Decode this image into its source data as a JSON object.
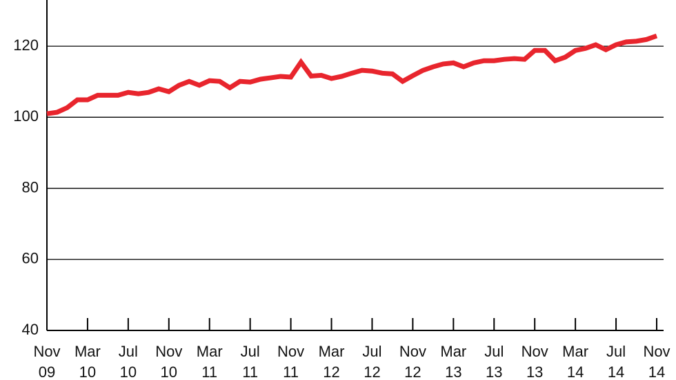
{
  "chart_data": {
    "type": "line",
    "categories": [
      "Nov 09",
      null,
      null,
      null,
      "Mar 10",
      null,
      null,
      null,
      "Jul 10",
      null,
      null,
      null,
      "Nov 10",
      null,
      null,
      null,
      "Mar 11",
      null,
      null,
      null,
      "Jul 11",
      null,
      null,
      null,
      "Nov 11",
      null,
      null,
      null,
      "Mar 12",
      null,
      null,
      null,
      "Jul 12",
      null,
      null,
      null,
      "Nov 12",
      null,
      null,
      null,
      "Mar 13",
      null,
      null,
      null,
      "Jul 13",
      null,
      null,
      null,
      "Nov 13",
      null,
      null,
      null,
      "Mar 14",
      null,
      null,
      null,
      "Jul 14",
      null,
      null,
      null,
      "Nov 14"
    ],
    "values": [
      101,
      101.4,
      102.7,
      104.9,
      104.9,
      106.2,
      106.2,
      106.2,
      107,
      106.6,
      107,
      108,
      107.2,
      109,
      110.1,
      109,
      110.3,
      110.1,
      108.3,
      110.1,
      109.9,
      110.7,
      111.1,
      111.5,
      111.3,
      115.5,
      111.6,
      111.8,
      110.9,
      111.5,
      112.4,
      113.2,
      113,
      112.4,
      112.2,
      110.1,
      111.7,
      113.2,
      114.2,
      115,
      115.3,
      114.2,
      115.3,
      115.9,
      115.9,
      116.3,
      116.5,
      116.3,
      118.8,
      118.8,
      115.9,
      116.9,
      118.8,
      119.4,
      120.4,
      119,
      120.4,
      121.2,
      121.4,
      121.9,
      122.9
    ],
    "color": "#e8252d",
    "ylim": [
      40,
      133
    ],
    "yticks": [
      40,
      60,
      80,
      100,
      120
    ],
    "grid": true
  }
}
